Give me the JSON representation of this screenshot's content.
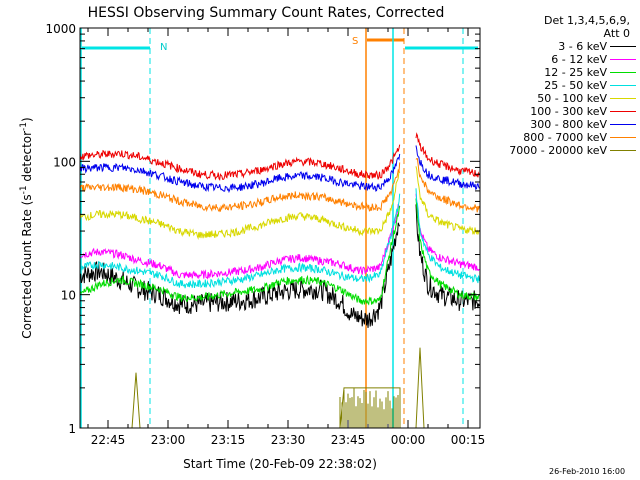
{
  "chart_data": {
    "type": "line",
    "title": "HESSI Observing Summary Count Rates, Corrected",
    "xlabel": "Start Time (20-Feb-09 22:38:02)",
    "ylabel_main": "Corrected Count Rate (s",
    "ylabel_sup1": "-1",
    "ylabel_mid": " detector",
    "ylabel_sup2": "-1",
    "ylabel_end": ")",
    "yscale": "log",
    "ylim": [
      1,
      1000
    ],
    "xlim": [
      "22:38",
      "00:18"
    ],
    "x_ticks": [
      "22:45",
      "23:00",
      "23:15",
      "23:30",
      "23:45",
      "00:00",
      "00:15"
    ],
    "y_ticks": [
      "1",
      "10",
      "100",
      "1000"
    ],
    "grid": false,
    "legend_header": [
      "Det 1,3,4,5,6,9,",
      "Att 0"
    ],
    "series": [
      {
        "name": "3 - 6 keV",
        "color": "#000000",
        "values": [
          [
            0,
            14
          ],
          [
            5,
            15
          ],
          [
            10,
            13
          ],
          [
            15,
            11
          ],
          [
            20,
            10
          ],
          [
            25,
            8.5
          ],
          [
            30,
            8.5
          ],
          [
            35,
            8.8
          ],
          [
            40,
            9
          ],
          [
            45,
            9.5
          ],
          [
            50,
            10.5
          ],
          [
            55,
            11
          ],
          [
            60,
            11
          ],
          [
            65,
            9
          ],
          [
            68,
            7
          ],
          [
            72,
            6.5
          ],
          [
            75,
            8
          ],
          [
            78,
            20
          ],
          [
            80,
            40
          ]
        ],
        "values_post": [
          [
            84,
            40
          ],
          [
            85,
            20
          ],
          [
            87,
            12
          ],
          [
            90,
            10
          ],
          [
            95,
            9
          ],
          [
            100,
            9
          ]
        ]
      },
      {
        "name": "6 - 12 keV",
        "color": "#ff00ff",
        "values": [
          [
            0,
            20
          ],
          [
            5,
            21
          ],
          [
            10,
            20
          ],
          [
            15,
            18
          ],
          [
            20,
            16.5
          ],
          [
            25,
            14
          ],
          [
            30,
            14
          ],
          [
            35,
            14.5
          ],
          [
            40,
            15
          ],
          [
            45,
            16
          ],
          [
            50,
            18
          ],
          [
            55,
            19
          ],
          [
            60,
            18
          ],
          [
            65,
            17
          ],
          [
            70,
            15
          ],
          [
            75,
            16
          ],
          [
            78,
            30
          ],
          [
            80,
            50
          ]
        ],
        "values_post": [
          [
            84,
            60
          ],
          [
            85,
            30
          ],
          [
            87,
            22
          ],
          [
            90,
            19
          ],
          [
            95,
            17
          ],
          [
            100,
            16
          ]
        ]
      },
      {
        "name": "12 - 25 keV",
        "color": "#00dd00",
        "values": [
          [
            0,
            10
          ],
          [
            5,
            12
          ],
          [
            10,
            13
          ],
          [
            15,
            12
          ],
          [
            20,
            11
          ],
          [
            25,
            9.5
          ],
          [
            30,
            9.5
          ],
          [
            35,
            10
          ],
          [
            40,
            10.5
          ],
          [
            45,
            11
          ],
          [
            50,
            12.5
          ],
          [
            55,
            13
          ],
          [
            60,
            12.5
          ],
          [
            65,
            11
          ],
          [
            70,
            9
          ],
          [
            75,
            9
          ],
          [
            78,
            25
          ],
          [
            80,
            45
          ]
        ],
        "values_post": [
          [
            84,
            50
          ],
          [
            85,
            25
          ],
          [
            87,
            15
          ],
          [
            90,
            12
          ],
          [
            95,
            10
          ],
          [
            100,
            9.5
          ]
        ]
      },
      {
        "name": "25 - 50 keV",
        "color": "#00e0e0",
        "values": [
          [
            0,
            16
          ],
          [
            5,
            17
          ],
          [
            10,
            16
          ],
          [
            15,
            15
          ],
          [
            20,
            14
          ],
          [
            25,
            12
          ],
          [
            30,
            12
          ],
          [
            35,
            12.5
          ],
          [
            40,
            13
          ],
          [
            45,
            14
          ],
          [
            50,
            15.5
          ],
          [
            55,
            16
          ],
          [
            60,
            15.5
          ],
          [
            65,
            14
          ],
          [
            70,
            13
          ],
          [
            75,
            14
          ],
          [
            78,
            30
          ],
          [
            80,
            55
          ]
        ],
        "values_post": [
          [
            84,
            60
          ],
          [
            85,
            30
          ],
          [
            87,
            20
          ],
          [
            90,
            16
          ],
          [
            95,
            14
          ],
          [
            100,
            13
          ]
        ]
      },
      {
        "name": "50 - 100 keV",
        "color": "#d8d800",
        "values": [
          [
            0,
            38
          ],
          [
            5,
            40
          ],
          [
            10,
            40
          ],
          [
            15,
            37
          ],
          [
            20,
            34
          ],
          [
            25,
            30
          ],
          [
            30,
            28
          ],
          [
            35,
            28.5
          ],
          [
            40,
            30
          ],
          [
            45,
            33
          ],
          [
            50,
            37
          ],
          [
            55,
            39
          ],
          [
            60,
            37
          ],
          [
            65,
            33
          ],
          [
            70,
            30
          ],
          [
            75,
            30
          ],
          [
            78,
            45
          ],
          [
            80,
            90
          ]
        ],
        "values_post": [
          [
            84,
            90
          ],
          [
            85,
            55
          ],
          [
            87,
            40
          ],
          [
            90,
            35
          ],
          [
            95,
            31
          ],
          [
            100,
            30
          ]
        ]
      },
      {
        "name": "100 - 300 keV",
        "color": "#ee0000",
        "values": [
          [
            0,
            110
          ],
          [
            5,
            112
          ],
          [
            10,
            115
          ],
          [
            15,
            108
          ],
          [
            20,
            98
          ],
          [
            25,
            88
          ],
          [
            30,
            80
          ],
          [
            35,
            78
          ],
          [
            40,
            80
          ],
          [
            45,
            86
          ],
          [
            50,
            95
          ],
          [
            55,
            100
          ],
          [
            60,
            97
          ],
          [
            65,
            88
          ],
          [
            70,
            80
          ],
          [
            75,
            78
          ],
          [
            78,
            100
          ],
          [
            80,
            130
          ]
        ],
        "values_post": [
          [
            84,
            160
          ],
          [
            85,
            130
          ],
          [
            87,
            105
          ],
          [
            90,
            95
          ],
          [
            95,
            85
          ],
          [
            100,
            80
          ]
        ]
      },
      {
        "name": "300 - 800 keV",
        "color": "#0000ee",
        "values": [
          [
            0,
            88
          ],
          [
            5,
            90
          ],
          [
            10,
            90
          ],
          [
            15,
            86
          ],
          [
            20,
            78
          ],
          [
            25,
            70
          ],
          [
            30,
            65
          ],
          [
            35,
            63
          ],
          [
            40,
            64
          ],
          [
            45,
            68
          ],
          [
            50,
            75
          ],
          [
            55,
            78
          ],
          [
            60,
            76
          ],
          [
            65,
            70
          ],
          [
            70,
            65
          ],
          [
            75,
            64
          ],
          [
            78,
            80
          ],
          [
            80,
            110
          ]
        ],
        "values_post": [
          [
            84,
            130
          ],
          [
            85,
            100
          ],
          [
            87,
            80
          ],
          [
            90,
            74
          ],
          [
            95,
            68
          ],
          [
            100,
            65
          ]
        ]
      },
      {
        "name": "800 - 7000 keV",
        "color": "#ff8000",
        "values": [
          [
            0,
            63
          ],
          [
            5,
            64
          ],
          [
            10,
            64
          ],
          [
            15,
            61
          ],
          [
            20,
            56
          ],
          [
            25,
            50
          ],
          [
            30,
            46
          ],
          [
            35,
            45
          ],
          [
            40,
            46
          ],
          [
            45,
            49
          ],
          [
            50,
            54
          ],
          [
            55,
            56
          ],
          [
            60,
            54
          ],
          [
            65,
            50
          ],
          [
            70,
            46
          ],
          [
            75,
            45
          ],
          [
            78,
            60
          ],
          [
            80,
            95
          ]
        ],
        "values_post": [
          [
            84,
            110
          ],
          [
            85,
            80
          ],
          [
            87,
            60
          ],
          [
            90,
            53
          ],
          [
            95,
            47
          ],
          [
            100,
            44
          ]
        ]
      },
      {
        "name": "7000 - 20000 keV",
        "color": "#808000",
        "values": [
          [
            0,
            1
          ],
          [
            13,
            1
          ],
          [
            14,
            2.6
          ],
          [
            15,
            1
          ],
          [
            65,
            1
          ],
          [
            66,
            2
          ],
          [
            80,
            2
          ],
          [
            80,
            1
          ]
        ],
        "values_post": [
          [
            84,
            1
          ],
          [
            85,
            4
          ],
          [
            86,
            1
          ],
          [
            100,
            1
          ]
        ]
      }
    ],
    "annotations": {
      "night_label": "N",
      "saa_label": "S",
      "date_stamp": "26-Feb-2010 16:00"
    }
  }
}
